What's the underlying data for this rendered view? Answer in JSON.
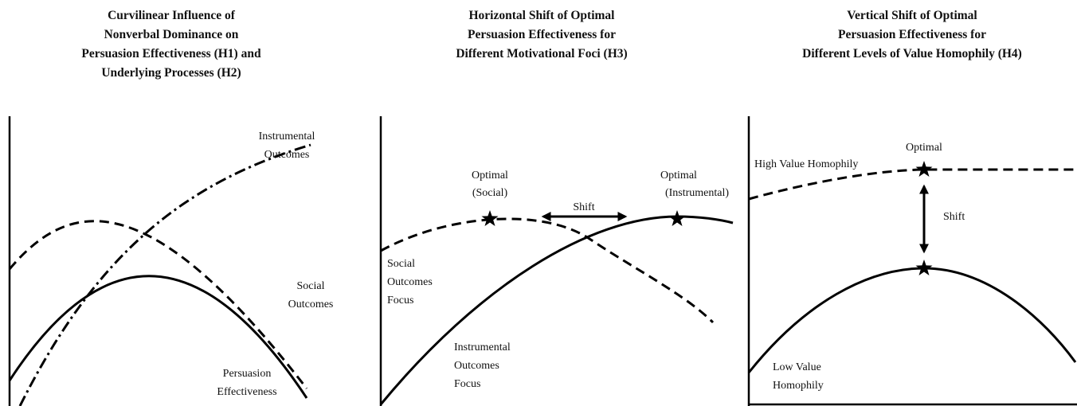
{
  "panels": [
    {
      "title": [
        "Curvilinear Influence of",
        "Nonverbal Dominance on",
        "Persuasion Effectiveness (H1) and",
        "Underlying Processes (H2)"
      ],
      "labels": {
        "instrumental": [
          "Instrumental",
          "Outcomes"
        ],
        "social": [
          "Social",
          "Outcomes"
        ],
        "persuasion": [
          "Persuasion",
          "Effectiveness"
        ]
      }
    },
    {
      "title": [
        "Horizontal Shift of Optimal",
        "Persuasion Effectiveness for",
        "Different Motivational Foci (H3)"
      ],
      "labels": {
        "optimal_social": [
          "Optimal",
          "(Social)"
        ],
        "optimal_instrumental": [
          "Optimal",
          "(Instrumental)"
        ],
        "shift": "Shift",
        "social_focus": [
          "Social",
          "Outcomes",
          "Focus"
        ],
        "instrumental_focus": [
          "Instrumental",
          "Outcomes",
          "Focus"
        ]
      }
    },
    {
      "title": [
        "Vertical Shift of Optimal",
        "Persuasion Effectiveness for",
        "Different Levels of Value Homophily (H4)"
      ],
      "labels": {
        "optimal": "Optimal",
        "high": "High Value Homophily",
        "shift": "Shift",
        "low": [
          "Low Value",
          "Homophily"
        ]
      }
    }
  ]
}
